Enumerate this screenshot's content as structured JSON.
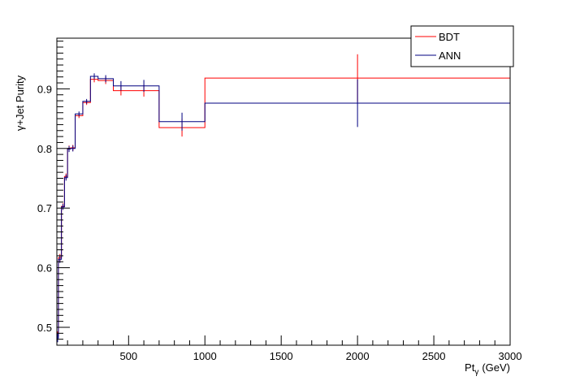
{
  "chart_data": {
    "type": "line",
    "style": "step-histogram-with-error-bars",
    "xlabel": "Pt",
    "xlabel_sub": "γ",
    "xlabel_unit": "(GeV)",
    "ylabel": "γ+Jet Purity",
    "xlim": [
      30,
      3000
    ],
    "ylim": [
      0.47,
      0.985
    ],
    "x_ticks": [
      500,
      1000,
      1500,
      2000,
      2500,
      3000
    ],
    "y_ticks": [
      0.5,
      0.6,
      0.7,
      0.8,
      0.9
    ],
    "y_tick_labels": [
      "0.5",
      "0.6",
      "0.7",
      "0.8",
      "0.9"
    ],
    "grid": false,
    "legend_position": "top-right",
    "bin_edges": [
      30,
      40,
      60,
      80,
      100,
      120,
      150,
      200,
      250,
      300,
      400,
      500,
      700,
      1000,
      3000
    ],
    "series": [
      {
        "name": "BDT",
        "color": "#ff0000",
        "values": [
          0.486,
          0.617,
          0.703,
          0.753,
          0.8,
          0.801,
          0.855,
          0.877,
          0.916,
          0.914,
          0.897,
          0.897,
          0.835,
          0.918
        ],
        "errors": [
          0.007,
          0.006,
          0.005,
          0.005,
          0.005,
          0.005,
          0.004,
          0.004,
          0.005,
          0.006,
          0.008,
          0.01,
          0.015,
          0.04
        ]
      },
      {
        "name": "ANN",
        "color": "#000080",
        "values": [
          0.482,
          0.614,
          0.702,
          0.751,
          0.799,
          0.8,
          0.858,
          0.879,
          0.921,
          0.917,
          0.905,
          0.905,
          0.845,
          0.876
        ],
        "errors": [
          0.007,
          0.006,
          0.005,
          0.005,
          0.005,
          0.005,
          0.004,
          0.004,
          0.005,
          0.006,
          0.008,
          0.01,
          0.015,
          0.04
        ]
      }
    ]
  }
}
